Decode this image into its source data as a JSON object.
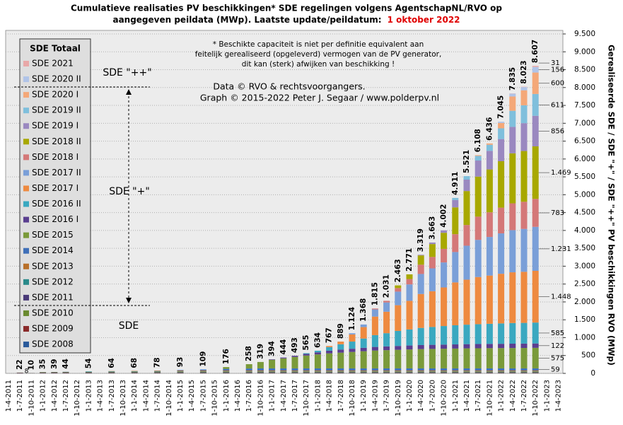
{
  "chart_data": {
    "type": "bar",
    "title": [
      "Cumulatieve realisaties PV beschikkingen*  SDE regelingen volgens AgentschapNL/RVO  op",
      "aangegeven peildata (MWp). Laatste update/peildatum:"
    ],
    "title_highlight": "1 oktober 2022",
    "note": [
      "* Beschikte capaciteit is niet per definitie equivalent aan",
      "feitelijk gerealiseerd (opgeleverd) vermogen van de PV generator,",
      "dit kan (sterk) afwijken van beschikking !"
    ],
    "credits": [
      "Data © RVO & rechtsvoorgangers.",
      "Graph © 2015-2022 Peter J. Segaar / www.polderpv.nl"
    ],
    "zone_labels": [
      "SDE \"++\"",
      "SDE \"+\"",
      "SDE"
    ],
    "legend_title": "SDE Totaal",
    "y_label": "Gerealiseerde SDE / SDE \"+\" / SDE \"++\" PV beschikkingen RVO (MWp)",
    "highlight_color": "#e00000",
    "grid": true,
    "ylim": [
      0,
      9500
    ],
    "yticks": [
      0,
      500,
      {
        "value": 1000,
        "label": "1.000"
      },
      {
        "value": 1500,
        "label": "1.500"
      },
      {
        "value": 2000,
        "label": "2.000"
      },
      {
        "value": 2500,
        "label": "2.500"
      },
      {
        "value": 3000,
        "label": "3.000"
      },
      {
        "value": 3500,
        "label": "3.500"
      },
      {
        "value": 4000,
        "label": "4.000"
      },
      {
        "value": 4500,
        "label": "4.500"
      },
      {
        "value": 5000,
        "label": "5.000"
      },
      {
        "value": 5500,
        "label": "5.500"
      },
      {
        "value": 6000,
        "label": "6.000"
      },
      {
        "value": 6500,
        "label": "6.500"
      },
      {
        "value": 7000,
        "label": "7.000"
      },
      {
        "value": 7500,
        "label": "7.500"
      },
      {
        "value": 8000,
        "label": "8.000"
      },
      {
        "value": 8500,
        "label": "8.500"
      },
      {
        "value": 9000,
        "label": "9.000"
      },
      {
        "value": 9500,
        "label": "9.500"
      }
    ],
    "xticks": [
      "1-4-2011",
      "1-7-2011",
      "1-10-2011",
      "1-1-2012",
      "1-4-2012",
      "1-7-2012",
      "1-10-2012",
      "1-1-2013",
      "1-4-2013",
      "1-7-2013",
      "1-10-2013",
      "1-1-2014",
      "1-4-2014",
      "1-7-2014",
      "1-10-2014",
      "1-1-2015",
      "1-4-2015",
      "1-7-2015",
      "1-10-2015",
      "1-1-2016",
      "1-4-2016",
      "1-7-2016",
      "1-10-2016",
      "1-1-2017",
      "1-4-2017",
      "1-7-2017",
      "1-10-2017",
      "1-1-2018",
      "1-4-2018",
      "1-7-2018",
      "1-10-2018",
      "1-1-2019",
      "1-4-2019",
      "1-7-2019",
      "1-10-2019",
      "1-1-2020",
      "1-4-2020",
      "1-7-2020",
      "1-10-2020",
      "1-1-2021",
      "1-4-2021",
      "1-7-2021",
      "1-10-2021",
      "1-1-2022",
      "1-4-2022",
      "1-7-2022",
      "1-10-2022",
      "1-1-2023",
      "1-4-2023"
    ],
    "categories": [
      "1-7-2011",
      "1-10-2011",
      "1-1-2012",
      "1-4-2012",
      "1-7-2012",
      "1-1-2013",
      "1-7-2013",
      "1-1-2014",
      "1-7-2014",
      "1-1-2015",
      "1-7-2015",
      "1-1-2016",
      "1-7-2016",
      "1-10-2016",
      "1-1-2017",
      "1-4-2017",
      "1-7-2017",
      "1-10-2017",
      "1-1-2018",
      "1-4-2018",
      "1-7-2018",
      "1-10-2018",
      "1-1-2019",
      "1-4-2019",
      "1-7-2019",
      "1-10-2019",
      "1-1-2020",
      "1-4-2020",
      "1-7-2020",
      "1-10-2020",
      "1-1-2021",
      "1-4-2021",
      "1-7-2021",
      "1-10-2021",
      "1-1-2022",
      "1-4-2022",
      "1-7-2022",
      "1-10-2022"
    ],
    "totals": [
      22,
      10,
      35,
      39,
      44,
      54,
      64,
      68,
      78,
      93,
      109,
      176,
      258,
      319,
      394,
      444,
      493,
      565,
      634,
      767,
      889,
      1124,
      1368,
      1815,
      2031,
      2463,
      2771,
      3319,
      3663,
      4002,
      4911,
      5521,
      6108,
      6436,
      7045,
      7835,
      8023,
      8607
    ],
    "total_labels": [
      "22",
      "10",
      "35",
      "39",
      "44",
      "54",
      "64",
      "68",
      "78",
      "93",
      "109",
      "176",
      "258",
      "319",
      "394",
      "444",
      "493",
      "565",
      "634",
      "767",
      "889",
      "1.124",
      "1.368",
      "1.815",
      "2.031",
      "2.463",
      "2.771",
      "3.319",
      "3.663",
      "4.002",
      "4.911",
      "5.521",
      "6.108",
      "6.436",
      "7.045",
      "7.835",
      "8.023",
      "8.607"
    ],
    "small_label": "8",
    "series": [
      {
        "name": "SDE 2008",
        "color": "#2a5a9a",
        "values": [
          8,
          5,
          8,
          8,
          8,
          8,
          8,
          8,
          8,
          8,
          8,
          8,
          8,
          8,
          8,
          8,
          8,
          8,
          8,
          8,
          8,
          8,
          8,
          8,
          8,
          8,
          8,
          8,
          8,
          8,
          8,
          8,
          8,
          8,
          8,
          8,
          8,
          8
        ]
      },
      {
        "name": "SDE 2009",
        "color": "#8a2a2a",
        "values": [
          10,
          3,
          10,
          10,
          10,
          10,
          10,
          10,
          10,
          10,
          10,
          10,
          10,
          10,
          10,
          10,
          10,
          10,
          10,
          10,
          10,
          10,
          10,
          10,
          10,
          10,
          10,
          10,
          10,
          10,
          10,
          10,
          10,
          10,
          10,
          10,
          10,
          10
        ]
      },
      {
        "name": "SDE 2010",
        "color": "#6a8a30",
        "values": [
          4,
          2,
          12,
          13,
          14,
          14,
          14,
          14,
          14,
          14,
          14,
          14,
          14,
          14,
          14,
          14,
          14,
          14,
          14,
          14,
          14,
          14,
          14,
          14,
          14,
          14,
          14,
          14,
          14,
          14,
          14,
          14,
          14,
          14,
          14,
          14,
          14,
          14
        ]
      },
      {
        "name": "SDE 2011",
        "color": "#4a3a78",
        "values": [
          0,
          0,
          5,
          8,
          10,
          10,
          10,
          10,
          10,
          10,
          10,
          10,
          10,
          10,
          10,
          10,
          10,
          10,
          10,
          10,
          10,
          10,
          10,
          10,
          10,
          10,
          10,
          10,
          10,
          10,
          10,
          10,
          10,
          10,
          10,
          10,
          10,
          10
        ]
      },
      {
        "name": "SDE 2012",
        "color": "#2a8a8a",
        "values": [
          0,
          0,
          0,
          0,
          2,
          12,
          14,
          14,
          14,
          14,
          14,
          14,
          14,
          14,
          14,
          14,
          14,
          14,
          14,
          14,
          14,
          14,
          14,
          14,
          14,
          14,
          14,
          14,
          14,
          14,
          14,
          14,
          14,
          14,
          14,
          14,
          14,
          14
        ]
      },
      {
        "name": "SDE 2013",
        "color": "#b8702a",
        "values": [
          0,
          0,
          0,
          0,
          0,
          0,
          8,
          12,
          18,
          22,
          25,
          25,
          25,
          25,
          25,
          25,
          25,
          25,
          25,
          25,
          25,
          25,
          25,
          25,
          25,
          25,
          25,
          25,
          25,
          25,
          25,
          25,
          25,
          25,
          25,
          25,
          25,
          25
        ]
      },
      {
        "name": "SDE 2014",
        "color": "#3f6fb8",
        "end_label": "59",
        "values": [
          0,
          0,
          0,
          0,
          0,
          0,
          0,
          0,
          4,
          15,
          28,
          45,
          55,
          59,
          59,
          59,
          59,
          59,
          59,
          59,
          59,
          59,
          59,
          59,
          59,
          59,
          59,
          59,
          59,
          59,
          59,
          59,
          59,
          59,
          59,
          59,
          59,
          59
        ]
      },
      {
        "name": "SDE 2015",
        "color": "#7a9a3a",
        "end_label": "575",
        "values": [
          0,
          0,
          0,
          0,
          0,
          0,
          0,
          0,
          0,
          0,
          0,
          50,
          122,
          179,
          240,
          280,
          320,
          360,
          390,
          420,
          440,
          460,
          480,
          500,
          510,
          520,
          530,
          540,
          545,
          550,
          555,
          560,
          563,
          566,
          568,
          570,
          572,
          575
        ]
      },
      {
        "name": "SDE 2016 I",
        "color": "#5a3e90",
        "end_label": "122",
        "values": [
          0,
          0,
          0,
          0,
          0,
          0,
          0,
          0,
          0,
          0,
          0,
          0,
          0,
          0,
          14,
          24,
          33,
          45,
          60,
          75,
          85,
          90,
          95,
          100,
          105,
          108,
          110,
          112,
          114,
          115,
          116,
          118,
          119,
          120,
          120,
          121,
          121,
          122
        ]
      },
      {
        "name": "SDE 2016 II",
        "color": "#3aa8c0",
        "end_label": "585",
        "values": [
          0,
          0,
          0,
          0,
          0,
          0,
          0,
          0,
          0,
          0,
          0,
          0,
          0,
          0,
          0,
          0,
          0,
          20,
          44,
          100,
          150,
          200,
          260,
          330,
          370,
          420,
          450,
          480,
          500,
          520,
          535,
          545,
          555,
          562,
          570,
          578,
          580,
          585
        ]
      },
      {
        "name": "SDE 2017 I",
        "color": "#ee8a40",
        "end_label": "1.448",
        "values": [
          0,
          0,
          0,
          0,
          0,
          0,
          0,
          0,
          0,
          0,
          0,
          0,
          0,
          0,
          0,
          0,
          0,
          0,
          0,
          32,
          74,
          200,
          320,
          520,
          600,
          720,
          800,
          950,
          1000,
          1080,
          1200,
          1260,
          1320,
          1350,
          1390,
          1420,
          1430,
          1448
        ]
      },
      {
        "name": "SDE 2017 II",
        "color": "#7a9fd8",
        "end_label": "1.231",
        "values": [
          0,
          0,
          0,
          0,
          0,
          0,
          0,
          0,
          0,
          0,
          0,
          0,
          0,
          0,
          0,
          0,
          0,
          0,
          0,
          0,
          0,
          34,
          73,
          200,
          260,
          380,
          460,
          560,
          640,
          700,
          850,
          950,
          1040,
          1080,
          1130,
          1180,
          1200,
          1231
        ]
      },
      {
        "name": "SDE 2018 I",
        "color": "#d47878",
        "end_label": "783",
        "values": [
          0,
          0,
          0,
          0,
          0,
          0,
          0,
          0,
          0,
          0,
          0,
          0,
          0,
          0,
          0,
          0,
          0,
          0,
          0,
          0,
          0,
          0,
          0,
          25,
          46,
          100,
          151,
          260,
          320,
          380,
          500,
          580,
          650,
          690,
          720,
          750,
          760,
          783
        ]
      },
      {
        "name": "SDE 2018 II",
        "color": "#a8a800",
        "highlight": true,
        "end_label": "1.469",
        "values": [
          0,
          0,
          0,
          0,
          0,
          0,
          0,
          0,
          0,
          0,
          0,
          0,
          0,
          0,
          0,
          0,
          0,
          0,
          0,
          0,
          0,
          0,
          0,
          0,
          0,
          75,
          130,
          260,
          360,
          450,
          750,
          950,
          1120,
          1200,
          1300,
          1400,
          1420,
          1469
        ]
      },
      {
        "name": "SDE 2019 I",
        "color": "#9a88c0",
        "end_label": "856",
        "values": [
          0,
          0,
          0,
          0,
          0,
          0,
          0,
          0,
          0,
          0,
          0,
          0,
          0,
          0,
          0,
          0,
          0,
          0,
          0,
          0,
          0,
          0,
          0,
          0,
          0,
          0,
          0,
          17,
          44,
          67,
          205,
          320,
          450,
          520,
          620,
          740,
          780,
          856
        ]
      },
      {
        "name": "SDE 2019 II",
        "color": "#7fbfdc",
        "end_label": "611",
        "values": [
          0,
          0,
          0,
          0,
          0,
          0,
          0,
          0,
          0,
          0,
          0,
          0,
          0,
          0,
          0,
          0,
          0,
          0,
          0,
          0,
          0,
          0,
          0,
          0,
          0,
          0,
          0,
          0,
          0,
          0,
          60,
          98,
          130,
          170,
          300,
          450,
          500,
          611
        ]
      },
      {
        "name": "SDE 2020 I",
        "color": "#f4a878",
        "end_label": "600",
        "values": [
          0,
          0,
          0,
          0,
          0,
          0,
          0,
          0,
          0,
          0,
          0,
          0,
          0,
          0,
          0,
          0,
          0,
          0,
          0,
          0,
          0,
          0,
          0,
          0,
          0,
          0,
          0,
          0,
          0,
          0,
          0,
          0,
          21,
          38,
          150,
          400,
          420,
          600
        ]
      },
      {
        "name": "SDE 2020 II",
        "color": "#b0c4e8",
        "end_label": "156",
        "values": [
          0,
          0,
          0,
          0,
          0,
          0,
          0,
          0,
          0,
          0,
          0,
          0,
          0,
          0,
          0,
          0,
          0,
          0,
          0,
          0,
          0,
          0,
          0,
          0,
          0,
          0,
          0,
          0,
          0,
          0,
          0,
          0,
          0,
          0,
          37,
          80,
          90,
          156
        ]
      },
      {
        "name": "SDE 2021",
        "color": "#e8a8a8",
        "end_label": "31",
        "values": [
          0,
          0,
          0,
          0,
          0,
          0,
          0,
          0,
          0,
          0,
          0,
          0,
          0,
          0,
          0,
          0,
          0,
          0,
          0,
          0,
          0,
          0,
          0,
          0,
          0,
          0,
          0,
          0,
          0,
          0,
          0,
          0,
          0,
          0,
          0,
          6,
          10,
          31
        ]
      }
    ]
  }
}
